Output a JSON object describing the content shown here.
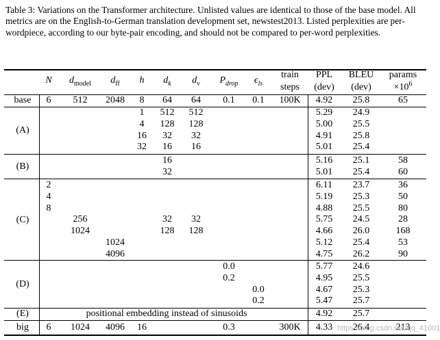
{
  "caption": "Table 3: Variations on the Transformer architecture. Unlisted values are identical to those of the base model. All metrics are on the English-to-German translation development set, newstest2013. Listed perplexities are per-wordpiece, according to our byte-pair encoding, and should not be compared to per-word perplexities.",
  "headers": {
    "N": "N",
    "dmodel_base": "d",
    "dmodel_sub": "model",
    "dff_base": "d",
    "dff_sub": "ff",
    "h": "h",
    "dk_base": "d",
    "dk_sub": "k",
    "dv_base": "d",
    "dv_sub": "v",
    "pdrop_base": "P",
    "pdrop_sub": "drop",
    "els_base": "ϵ",
    "els_sub": "ls",
    "train_1": "train",
    "train_2": "steps",
    "ppl_1": "PPL",
    "ppl_2": "(dev)",
    "bleu_1": "BLEU",
    "bleu_2": "(dev)",
    "params_1": "params",
    "params_2": "×10",
    "params_sup": "6"
  },
  "groups": {
    "A": "(A)",
    "B": "(B)",
    "C": "(C)",
    "D": "(D)",
    "E": "(E)"
  },
  "base": {
    "label": "base",
    "N": "6",
    "dmodel": "512",
    "dff": "2048",
    "h": "8",
    "dk": "64",
    "dv": "64",
    "pdrop": "0.1",
    "els": "0.1",
    "steps": "100K",
    "ppl": "4.92",
    "bleu": "25.8",
    "params": "65"
  },
  "A": [
    {
      "h": "1",
      "dk": "512",
      "dv": "512",
      "ppl": "5.29",
      "bleu": "24.9"
    },
    {
      "h": "4",
      "dk": "128",
      "dv": "128",
      "ppl": "5.00",
      "bleu": "25.5"
    },
    {
      "h": "16",
      "dk": "32",
      "dv": "32",
      "ppl": "4.91",
      "bleu": "25.8"
    },
    {
      "h": "32",
      "dk": "16",
      "dv": "16",
      "ppl": "5.01",
      "bleu": "25.4"
    }
  ],
  "B": [
    {
      "dk": "16",
      "ppl": "5.16",
      "bleu": "25.1",
      "params": "58"
    },
    {
      "dk": "32",
      "ppl": "5.01",
      "bleu": "25.4",
      "params": "60"
    }
  ],
  "C": [
    {
      "N": "2",
      "ppl": "6.11",
      "bleu": "23.7",
      "params": "36"
    },
    {
      "N": "4",
      "ppl": "5.19",
      "bleu": "25.3",
      "params": "50"
    },
    {
      "N": "8",
      "ppl": "4.88",
      "bleu": "25.5",
      "params": "80"
    },
    {
      "dmodel": "256",
      "dk": "32",
      "dv": "32",
      "ppl": "5.75",
      "bleu": "24.5",
      "params": "28"
    },
    {
      "dmodel": "1024",
      "dk": "128",
      "dv": "128",
      "ppl": "4.66",
      "bleu": "26.0",
      "params": "168"
    },
    {
      "dff": "1024",
      "ppl": "5.12",
      "bleu": "25.4",
      "params": "53"
    },
    {
      "dff": "4096",
      "ppl": "4.75",
      "bleu": "26.2",
      "params": "90"
    }
  ],
  "D": [
    {
      "pdrop": "0.0",
      "ppl": "5.77",
      "bleu": "24.6"
    },
    {
      "pdrop": "0.2",
      "ppl": "4.95",
      "bleu": "25.5"
    },
    {
      "els": "0.0",
      "ppl": "4.67",
      "bleu": "25.3"
    },
    {
      "els": "0.2",
      "ppl": "5.47",
      "bleu": "25.7"
    }
  ],
  "E": {
    "text": "positional embedding instead of sinusoids",
    "ppl": "4.92",
    "bleu": "25.7"
  },
  "big": {
    "label": "big",
    "N": "6",
    "dmodel": "1024",
    "dff": "4096",
    "h": "16",
    "pdrop": "0.3",
    "steps": "300K",
    "ppl": "4.33",
    "bleu": "26.4",
    "params": "213"
  },
  "watermark": "https://blog.csdn.net/qq_41001"
}
